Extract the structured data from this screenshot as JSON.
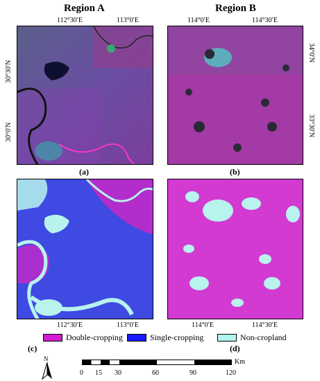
{
  "titles": {
    "region_a": "Region A",
    "region_b": "Region B"
  },
  "region_a_ticks": {
    "top": [
      "112°30′E",
      "113°0′E"
    ],
    "left": [
      "30°30′N",
      "30°0′N"
    ],
    "bottom": [
      "112°30′E",
      "113°0′E"
    ]
  },
  "region_b_ticks": {
    "top": [
      "114°0′E",
      "114°30′E"
    ],
    "right": [
      "34°0′N",
      "33°30′N"
    ],
    "bottom": [
      "114°0′E",
      "114°30′E"
    ]
  },
  "panel_labels": {
    "a": "(a)",
    "b": "(b)",
    "c": "(c)",
    "d": "(d)"
  },
  "legend": {
    "items": [
      {
        "label": "Double-cropping",
        "color": "#d41bd4"
      },
      {
        "label": "Single-cropping",
        "color": "#1a1aff"
      },
      {
        "label": "Non-cropland",
        "color": "#b3f5ee"
      }
    ]
  },
  "north_arrow": {
    "label": "N"
  },
  "scale_bar": {
    "unit": "Km",
    "labels": [
      "0",
      "15",
      "30",
      "60",
      "90",
      "120"
    ]
  }
}
